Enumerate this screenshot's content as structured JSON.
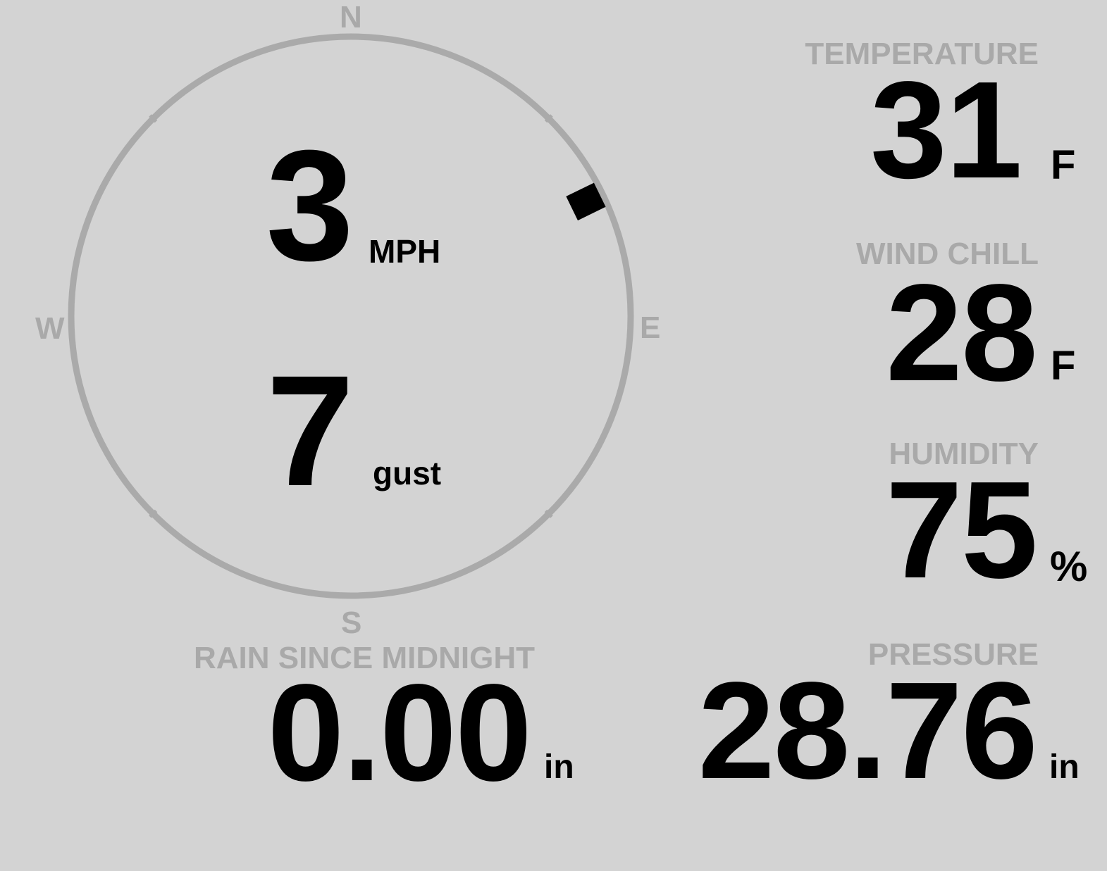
{
  "compass": {
    "north": "N",
    "south": "S",
    "east": "E",
    "west": "W",
    "wind_direction_degrees": 64,
    "ring_color": "#aaaaaa",
    "wind_speed": "3",
    "wind_speed_unit": "MPH",
    "gust": "7",
    "gust_unit": "gust"
  },
  "temperature": {
    "label": "TEMPERATURE",
    "value": "31",
    "unit": "F"
  },
  "wind_chill": {
    "label": "WIND CHILL",
    "value": "28",
    "unit": "F"
  },
  "humidity": {
    "label": "HUMIDITY",
    "value": "75",
    "unit": "%"
  },
  "pressure": {
    "label": "PRESSURE",
    "value": "28.76",
    "unit": "in"
  },
  "rain": {
    "label": "RAIN SINCE MIDNIGHT",
    "value": "0.00",
    "unit": "in"
  },
  "colors": {
    "background": "#d3d3d3",
    "label": "#a9a9a9",
    "value": "#000000"
  }
}
